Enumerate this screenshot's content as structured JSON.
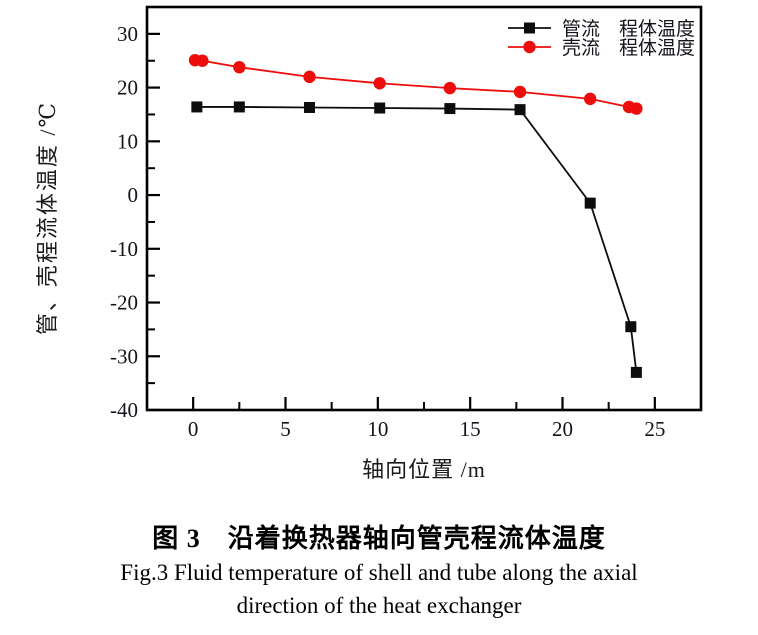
{
  "figure": {
    "caption_zh": "图 3　沿着换热器轴向管壳程流体温度",
    "caption_en_line1": "Fig.3  Fluid temperature of shell and tube along the axial",
    "caption_en_line2": "direction of the heat exchanger"
  },
  "colors": {
    "axis": "#000000",
    "tube_series": "#0d0d0d",
    "shell_series": "#ee0d0d",
    "background": "#ffffff"
  },
  "chart_data": {
    "type": "line",
    "title": "",
    "xlabel": "轴向位置 /m",
    "ylabel": "管、壳程流体温度 /℃",
    "xlim": [
      -2.5,
      27.5
    ],
    "ylim": [
      -40,
      35
    ],
    "x_ticks_major": [
      0,
      5,
      10,
      15,
      20,
      25
    ],
    "x_ticks_minor": [
      2.5,
      7.5,
      12.5,
      17.5,
      22.5
    ],
    "y_ticks_major": [
      30,
      20,
      10,
      0,
      -10,
      -20,
      -30,
      -40
    ],
    "y_ticks_minor": [
      25,
      15,
      5,
      -5,
      -15,
      -25,
      -35
    ],
    "grid": false,
    "legend_position": "top-right-inside",
    "series": [
      {
        "name": "管流　程体温度",
        "marker": "square",
        "color": "#0d0d0d",
        "x": [
          0.2,
          2.5,
          6.3,
          10.1,
          13.9,
          17.7,
          21.5,
          23.7,
          24.0
        ],
        "values": [
          16.4,
          16.4,
          16.3,
          16.2,
          16.1,
          15.9,
          -1.5,
          -24.5,
          -33.0
        ]
      },
      {
        "name": "壳流　程体温度",
        "marker": "circle",
        "color": "#ee0d0d",
        "x": [
          0.1,
          0.5,
          2.5,
          6.3,
          10.1,
          13.9,
          17.7,
          21.5,
          23.6,
          24.0
        ],
        "values": [
          25.1,
          25.0,
          23.8,
          22.0,
          20.8,
          19.9,
          19.2,
          17.9,
          16.4,
          16.1
        ]
      }
    ]
  }
}
